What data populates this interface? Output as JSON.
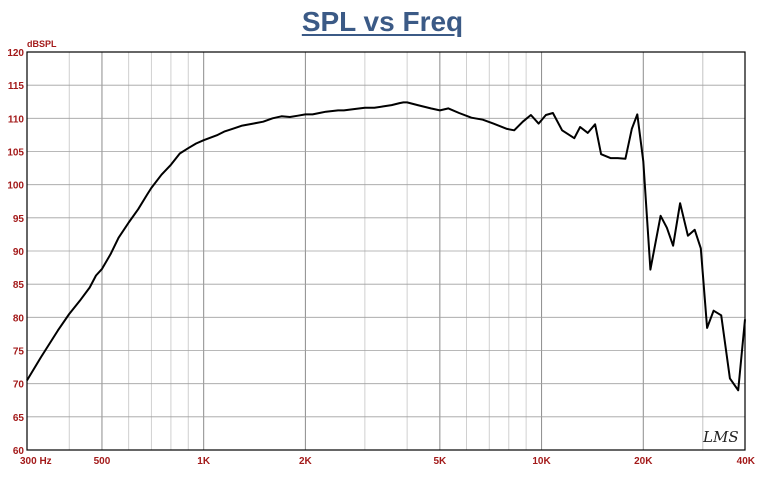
{
  "chart_data": {
    "type": "line",
    "title": "SPL vs Freq",
    "ylabel": "dBSPL",
    "x_scale": "log",
    "xlim": [
      300,
      40000
    ],
    "ylim": [
      60,
      120
    ],
    "y_ticks": [
      60,
      65,
      70,
      75,
      80,
      85,
      90,
      95,
      100,
      105,
      110,
      115,
      120
    ],
    "y_tick_labels": [
      "60",
      "65",
      "70",
      "75",
      "80",
      "85",
      "90",
      "95",
      "100",
      "105",
      "110",
      "115",
      "120"
    ],
    "x_ticks": [
      300,
      500,
      1000,
      2000,
      5000,
      10000,
      20000,
      40000
    ],
    "x_tick_labels": [
      "300  Hz",
      "500",
      "1K",
      "2K",
      "5K",
      "10K",
      "20K",
      "40K"
    ],
    "grid": true,
    "logo_text": "LMS",
    "line_color": "#000000",
    "series": [
      {
        "x": [
          300,
          330,
          370,
          400,
          430,
          460,
          480,
          500,
          530,
          560,
          600,
          640,
          680,
          700,
          750,
          800,
          850,
          900,
          950,
          1000,
          1100,
          1150,
          1200,
          1300,
          1400,
          1500,
          1600,
          1700,
          1800,
          1900,
          2000,
          2100,
          2200,
          2300,
          2500,
          2600,
          2800,
          3000,
          3200,
          3400,
          3600,
          3800,
          3900,
          4000,
          4300,
          4700,
          5000,
          5300,
          5700,
          6200,
          6700,
          7200,
          7900,
          8300,
          8800,
          9300,
          9800,
          10300,
          10800,
          11500,
          12500,
          13000,
          13700,
          14400,
          15000,
          16000,
          16800,
          17700,
          18500,
          19200,
          20000,
          21000,
          22500,
          23500,
          24500,
          25700,
          27100,
          28400,
          29600,
          30900,
          32300,
          34000,
          36100,
          38200,
          40000
        ],
        "y": [
          70.5,
          74.0,
          78.0,
          80.5,
          82.5,
          84.5,
          86.3,
          87.3,
          89.5,
          92.0,
          94.3,
          96.3,
          98.5,
          99.5,
          101.5,
          103.0,
          104.7,
          105.5,
          106.2,
          106.7,
          107.5,
          108.0,
          108.3,
          108.9,
          109.2,
          109.5,
          110.0,
          110.3,
          110.2,
          110.4,
          110.6,
          110.6,
          110.8,
          111.0,
          111.2,
          111.2,
          111.4,
          111.6,
          111.6,
          111.8,
          112.0,
          112.3,
          112.4,
          112.4,
          112.0,
          111.5,
          111.2,
          111.5,
          110.8,
          110.1,
          109.8,
          109.2,
          108.4,
          108.2,
          109.5,
          110.5,
          109.2,
          110.5,
          110.8,
          108.2,
          107.0,
          108.7,
          107.8,
          109.1,
          104.6,
          104.0,
          104.0,
          103.9,
          108.4,
          110.6,
          103.5,
          87.2,
          95.3,
          93.5,
          90.8,
          97.2,
          92.3,
          93.2,
          90.4,
          78.4,
          81.0,
          80.3,
          70.8,
          69.0,
          79.7
        ]
      }
    ]
  }
}
